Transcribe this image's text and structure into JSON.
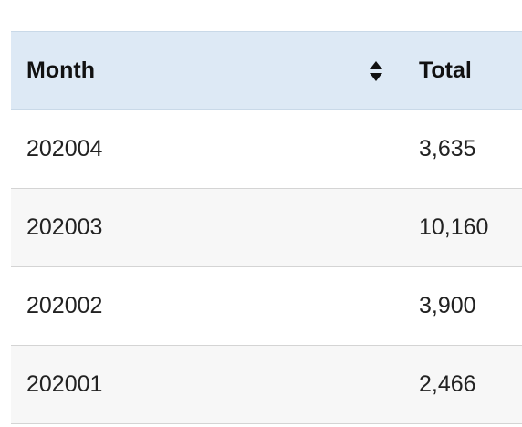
{
  "table": {
    "columns": [
      "Month",
      "Total"
    ],
    "sort_icon": "sort-updown-icon",
    "rows": [
      {
        "month": "202004",
        "total": "3,635"
      },
      {
        "month": "202003",
        "total": "10,160"
      },
      {
        "month": "202002",
        "total": "3,900"
      },
      {
        "month": "202001",
        "total": "2,466"
      }
    ]
  },
  "colors": {
    "header_bg": "#dde9f5",
    "stripe_bg": "#f7f7f7"
  }
}
